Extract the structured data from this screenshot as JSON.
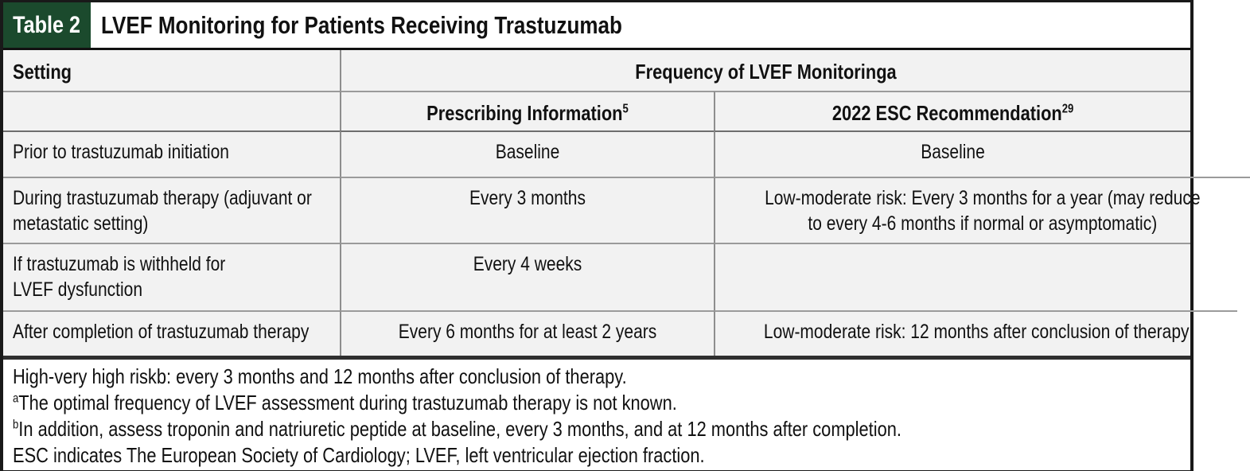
{
  "header": {
    "label": "Table 2",
    "title": "LVEF Monitoring for Patients Receiving Trastuzumab"
  },
  "table": {
    "col1_header": "Setting",
    "merged_header": "Frequency of LVEF Monitoringa",
    "subheaders": [
      {
        "text": "Prescribing Information",
        "sup": "5"
      },
      {
        "text": "2022 ESC Recommendation",
        "sup": "29"
      }
    ],
    "rows": [
      {
        "setting": "Prior to trastuzumab initiation",
        "prescribing": "Baseline",
        "esc": "Baseline"
      },
      {
        "setting": "During trastuzumab therapy (adjuvant or\nmetastatic setting)",
        "prescribing": "Every 3 months",
        "esc": "Low-moderate risk: Every 3 months for a year (may reduce\nto every 4-6 months if normal or asymptomatic)"
      },
      {
        "setting": "If trastuzumab is withheld for\nLVEF dysfunction",
        "prescribing": "Every 4 weeks",
        "esc": ""
      },
      {
        "setting": "After completion of trastuzumab therapy",
        "prescribing": "Every 6 months for at least 2 years",
        "esc": "Low-moderate risk: 12 months after conclusion of therapy"
      }
    ]
  },
  "footnotes": [
    {
      "sup": "",
      "text": "High-very high riskb: every 3 months and 12 months after conclusion of therapy."
    },
    {
      "sup": "a",
      "text": "The optimal frequency of LVEF assessment during trastuzumab therapy is not known."
    },
    {
      "sup": "b",
      "text": "In addition, assess troponin and natriuretic peptide at baseline, every 3 months, and at 12 months after completion."
    },
    {
      "sup": "",
      "text": "ESC indicates The European Society of Cardiology; LVEF, left ventricular ejection fraction."
    }
  ],
  "colors": {
    "label_green": "#1b4a2d",
    "row_background": "#f2f2f2",
    "inner_border_gray": "#8e8e8e",
    "outer_border_black": "#191919"
  }
}
